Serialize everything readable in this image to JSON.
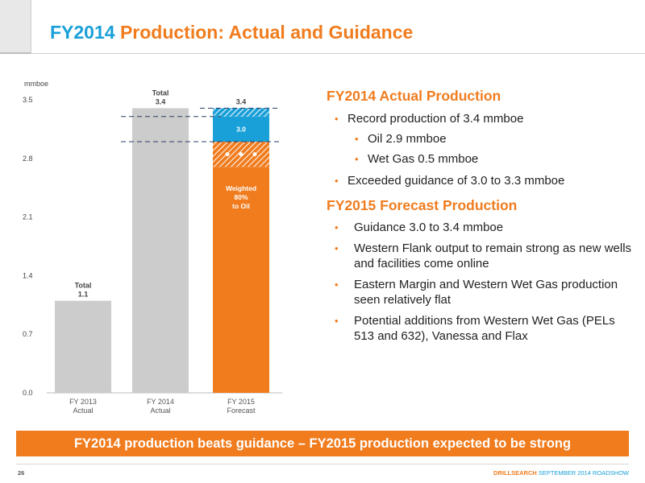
{
  "title": {
    "part1": "FY2014",
    "part2": "Production: Actual and Guidance"
  },
  "chart_data": {
    "type": "bar",
    "ylabel": "mmboe",
    "ylim": [
      0,
      3.5
    ],
    "yticks": [
      "0.0",
      "0.7",
      "1.4",
      "2.1",
      "2.8",
      "3.5"
    ],
    "categories": [
      "FY 2013 Actual",
      "FY 2014 Actual",
      "FY 2015 Forecast"
    ],
    "category_labels": [
      {
        "line1": "FY 2013",
        "line2": "Actual"
      },
      {
        "line1": "FY 2014",
        "line2": "Actual"
      },
      {
        "line1": "FY 2015",
        "line2": "Forecast"
      }
    ],
    "values": [
      1.1,
      3.4,
      3.4
    ],
    "bar_labels": [
      {
        "line1": "Total",
        "line2": "1.1"
      },
      {
        "line1": "Total",
        "line2": "3.4"
      },
      {
        "line1": "",
        "line2": "3.4"
      }
    ],
    "forecast_segments": [
      {
        "name": "Weighted 80% to Oil",
        "from": 0,
        "to": 2.7,
        "style": "solid",
        "color": "#f07c1e"
      },
      {
        "name": "",
        "from": 2.7,
        "to": 3.0,
        "style": "hatched",
        "color": "#f07c1e"
      },
      {
        "name": "",
        "from": 3.0,
        "to": 3.3,
        "style": "solid",
        "color": "#1aa0d8"
      },
      {
        "name": "",
        "from": 3.3,
        "to": 3.4,
        "style": "hatched",
        "color": "#1aa0d8"
      }
    ],
    "forecast_inner_label": "3.0",
    "forecast_weighted_label": [
      "Weighted",
      "80%",
      "to Oil"
    ],
    "guidance_lines": [
      3.4,
      3.3,
      3.0
    ],
    "grid": false,
    "bar_color": "#cccccc"
  },
  "sections": [
    {
      "heading": "FY2014 Actual Production",
      "bullets": [
        {
          "text": "Record production of 3.4 mmboe",
          "level": 0
        },
        {
          "text": "Oil 2.9 mmboe",
          "level": 1
        },
        {
          "text": "Wet Gas 0.5 mmboe",
          "level": 1
        },
        {
          "text": "Exceeded guidance of 3.0 to 3.3 mmboe",
          "level": 0
        }
      ]
    },
    {
      "heading": "FY2015 Forecast Production",
      "bullets": [
        {
          "text": "Guidance 3.0 to 3.4 mmboe"
        },
        {
          "text": "Western Flank output to remain strong as new wells and facilities come online"
        },
        {
          "text": "Eastern Margin and Western Wet Gas production seen relatively flat"
        },
        {
          "text": "Potential additions from Western Wet Gas (PELs 513 and 632), Vanessa and Flax"
        }
      ]
    }
  ],
  "banner": "FY2014 production beats guidance – FY2015 production expected to be strong",
  "footer": {
    "page": "26",
    "brand": "DRILLSEARCH",
    "event": "SEPTEMBER 2014 ROADSHOW"
  },
  "colors": {
    "orange": "#f07c1e",
    "blue": "#1aa0d8",
    "grey_bar": "#cccccc"
  }
}
